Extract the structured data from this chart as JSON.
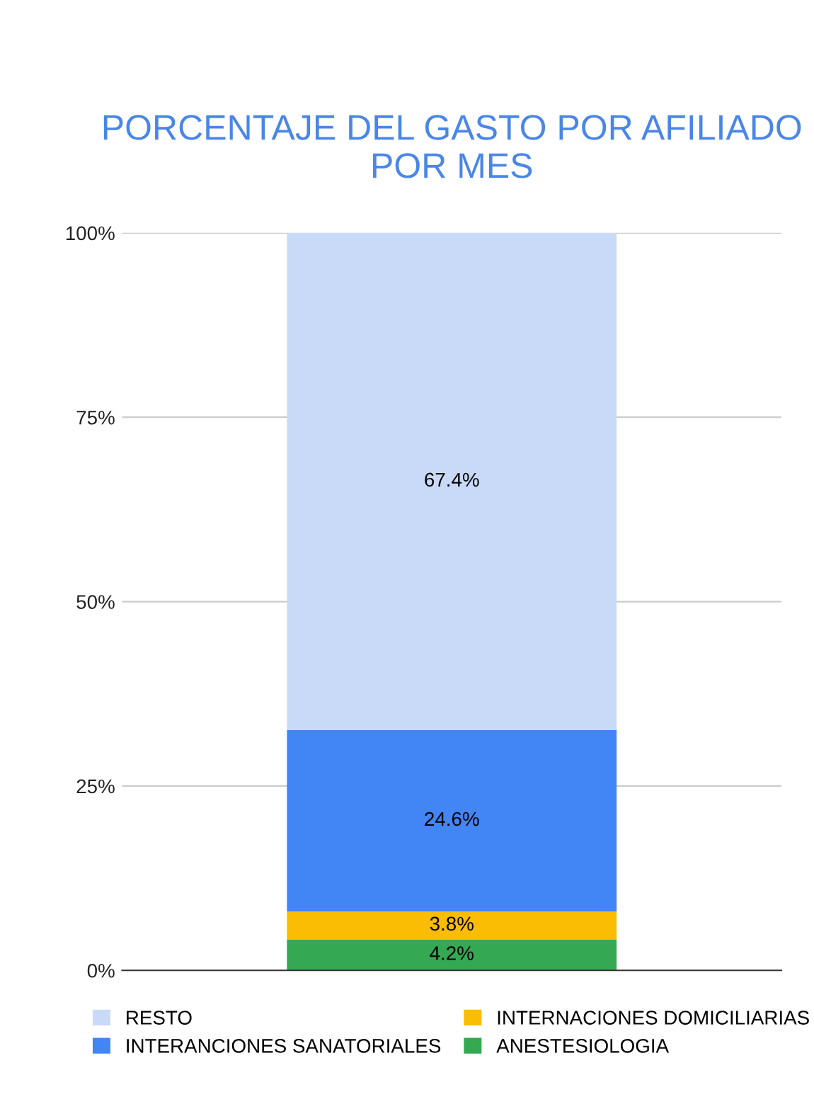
{
  "chart_data": {
    "type": "bar",
    "title": "PORCENTAJE DEL GASTO POR AFILIADO\nPOR MES",
    "categories": [
      null
    ],
    "stacked": true,
    "series": [
      {
        "name": "ANESTESIOLOGIA",
        "color": "#34a853",
        "values": [
          4.2
        ],
        "value_labels": [
          "4.2%"
        ]
      },
      {
        "name": "INTERNACIONES DOMICILIARIAS",
        "color": "#fbbc04",
        "values": [
          3.8
        ],
        "value_labels": [
          "3.8%"
        ]
      },
      {
        "name": "INTERANCIONES SANATORIALES",
        "color": "#4285f4",
        "values": [
          24.6
        ],
        "value_labels": [
          "24.6%"
        ]
      },
      {
        "name": "RESTO",
        "color": "#c9daf8",
        "values": [
          67.4
        ],
        "value_labels": [
          "67.4%"
        ]
      }
    ],
    "ylim": [
      0,
      100
    ],
    "yticks": [
      {
        "value": 0,
        "label": "0%"
      },
      {
        "value": 25,
        "label": "25%"
      },
      {
        "value": 50,
        "label": "50%"
      },
      {
        "value": 75,
        "label": "75%"
      },
      {
        "value": 100,
        "label": "100%"
      }
    ],
    "grid": "y",
    "legend": "bottom",
    "tick_labels": "y"
  }
}
